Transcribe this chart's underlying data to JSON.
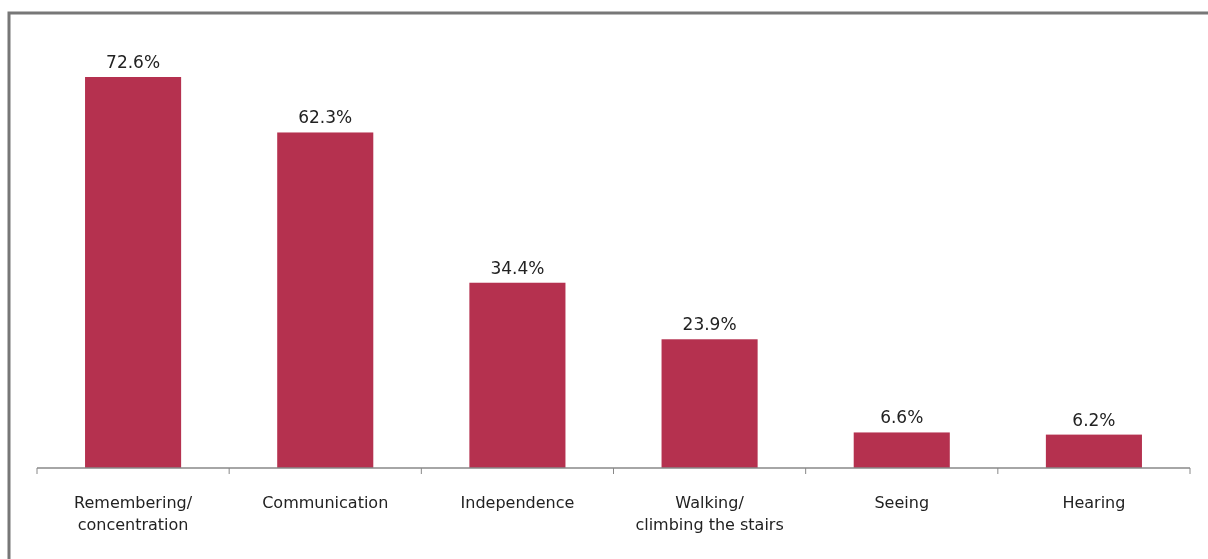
{
  "chart_data": {
    "type": "bar",
    "categories": [
      "Remembering/\nconcentration",
      "Communication",
      "Independence",
      "Walking/\nclimbing the stairs",
      "Seeing",
      "Hearing"
    ],
    "values": [
      72.6,
      62.3,
      34.4,
      23.9,
      6.6,
      6.2
    ],
    "value_labels": [
      "72.6%",
      "62.3%",
      "34.4%",
      "23.9%",
      "6.6%",
      "6.2%"
    ],
    "color": "#b5314f"
  }
}
